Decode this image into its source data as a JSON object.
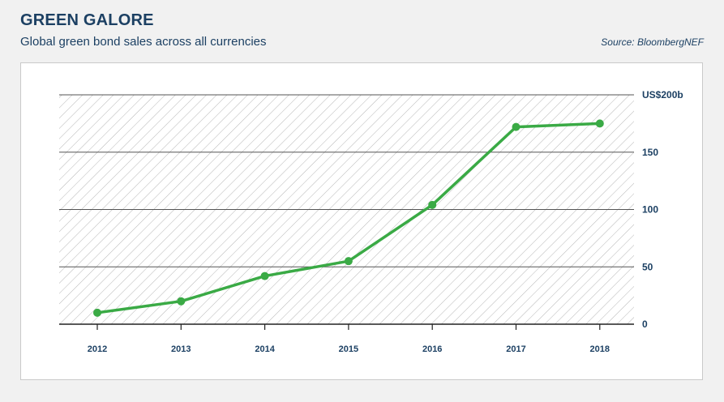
{
  "header": {
    "title": "GREEN GALORE",
    "subtitle": "Global green bond sales across all currencies",
    "source": "Source: BloombergNEF"
  },
  "colors": {
    "line": "#3aaa45",
    "text": "#1c4063",
    "hatch": "#b7b7b7",
    "grid": "#555555"
  },
  "chart_data": {
    "type": "line",
    "title": "GREEN GALORE",
    "subtitle": "Global green bond sales across all currencies",
    "xlabel": "",
    "ylabel": "",
    "x": [
      "2012",
      "2013",
      "2014",
      "2015",
      "2016",
      "2017",
      "2018"
    ],
    "series": [
      {
        "values": [
          10,
          20,
          42,
          55,
          104,
          172,
          175
        ]
      }
    ],
    "ylim": [
      0,
      200
    ],
    "yticks": [
      0,
      50,
      100,
      150,
      200
    ],
    "ytick_labels": [
      "0",
      "50",
      "100",
      "150",
      "US$200b"
    ],
    "y_axis_position": "right",
    "grid": true,
    "legend": "none"
  }
}
